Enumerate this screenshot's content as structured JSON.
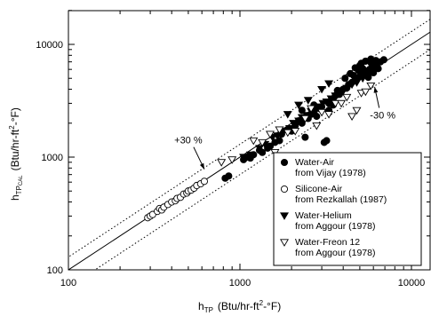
{
  "chart_data": {
    "type": "scatter",
    "title": "",
    "xlabel": {
      "main": "h",
      "sub": "TP",
      "unit": "(Btu/hr-ft",
      "sup": "2",
      "unit_end": "-°F)"
    },
    "ylabel": {
      "main": "h",
      "sub": "TP",
      "subsub": "CAL",
      "unit": "(Btu/hr-ft",
      "sup": "2",
      "unit_end": "-°F)"
    },
    "x_scale": "log",
    "y_scale": "log",
    "xlim": [
      100,
      15000
    ],
    "ylim": [
      100,
      20000
    ],
    "x_ticks": [
      {
        "value": 100,
        "label": "100"
      },
      {
        "value": 1000,
        "label": "1000"
      },
      {
        "value": 10000,
        "label": "10000"
      }
    ],
    "y_ticks": [
      {
        "value": 100,
        "label": "100"
      },
      {
        "value": 1000,
        "label": "1000"
      },
      {
        "value": 10000,
        "label": "10000"
      }
    ],
    "grid": false,
    "legend_position": "bottom-right",
    "reference_lines": [
      {
        "name": "1:1",
        "factor": 1.0,
        "style": "solid"
      },
      {
        "name": "+30%",
        "factor": 1.3,
        "style": "dotted"
      },
      {
        "name": "-30%",
        "factor": 0.7,
        "style": "dotted"
      }
    ],
    "annotations": [
      {
        "text": "+30 %",
        "text_x": 500,
        "text_y": 1320,
        "arrow_x": 620,
        "arrow_y": 780
      },
      {
        "text": "-30 %",
        "text_x": 6800,
        "text_y": 2200,
        "arrow_x": 6100,
        "arrow_y": 4200
      }
    ],
    "series": [
      {
        "legend_line1": "Water-Air",
        "legend_line2": "from Vijay (1978)",
        "marker": "circle-filled",
        "points": [
          [
            820,
            650
          ],
          [
            860,
            680
          ],
          [
            1050,
            950
          ],
          [
            1100,
            1000
          ],
          [
            1150,
            980
          ],
          [
            1200,
            1050
          ],
          [
            1300,
            1150
          ],
          [
            1350,
            1100
          ],
          [
            1450,
            1200
          ],
          [
            1500,
            1250
          ],
          [
            1600,
            1350
          ],
          [
            1700,
            1400
          ],
          [
            1750,
            1600
          ],
          [
            1900,
            1750
          ],
          [
            2000,
            1700
          ],
          [
            2100,
            1900
          ],
          [
            2200,
            2100
          ],
          [
            2300,
            2000
          ],
          [
            2400,
            1500
          ],
          [
            2500,
            2200
          ],
          [
            2600,
            2400
          ],
          [
            2700,
            2500
          ],
          [
            2800,
            2300
          ],
          [
            2900,
            2700
          ],
          [
            3000,
            2800
          ],
          [
            3100,
            1350
          ],
          [
            3200,
            1400
          ],
          [
            3300,
            3000
          ],
          [
            3400,
            3200
          ],
          [
            3500,
            3300
          ],
          [
            3600,
            3500
          ],
          [
            3800,
            3600
          ],
          [
            3900,
            3800
          ],
          [
            4000,
            4000
          ],
          [
            4200,
            4100
          ],
          [
            4300,
            4400
          ],
          [
            4500,
            4600
          ],
          [
            4700,
            4800
          ],
          [
            4800,
            5000
          ],
          [
            5000,
            5200
          ],
          [
            5200,
            5300
          ],
          [
            5300,
            5600
          ],
          [
            5500,
            5800
          ],
          [
            5700,
            6000
          ],
          [
            5900,
            6300
          ],
          [
            6100,
            6500
          ],
          [
            6300,
            6800
          ],
          [
            6600,
            7000
          ],
          [
            4700,
            6200
          ],
          [
            5000,
            6500
          ],
          [
            5400,
            7100
          ],
          [
            5800,
            7400
          ],
          [
            6200,
            7200
          ],
          [
            6900,
            7300
          ],
          [
            3700,
            3900
          ],
          [
            4100,
            5000
          ],
          [
            4400,
            5500
          ],
          [
            4900,
            5900
          ],
          [
            5100,
            6800
          ],
          [
            5600,
            5100
          ],
          [
            6000,
            5600
          ],
          [
            6400,
            6100
          ],
          [
            5800,
            6900
          ],
          [
            5200,
            6100
          ],
          [
            4600,
            5300
          ],
          [
            3300,
            2600
          ],
          [
            3500,
            2900
          ],
          [
            2700,
            2900
          ],
          [
            2300,
            2600
          ]
        ]
      },
      {
        "legend_line1": "Silicone-Air",
        "legend_line2": "from Rezkallah (1987)",
        "marker": "circle-open",
        "points": [
          [
            290,
            290
          ],
          [
            300,
            300
          ],
          [
            310,
            310
          ],
          [
            330,
            330
          ],
          [
            340,
            350
          ],
          [
            350,
            340
          ],
          [
            360,
            360
          ],
          [
            380,
            380
          ],
          [
            400,
            400
          ],
          [
            420,
            410
          ],
          [
            430,
            430
          ],
          [
            450,
            440
          ],
          [
            470,
            470
          ],
          [
            490,
            480
          ],
          [
            500,
            500
          ],
          [
            520,
            510
          ],
          [
            540,
            530
          ],
          [
            560,
            560
          ],
          [
            590,
            580
          ],
          [
            620,
            610
          ]
        ]
      },
      {
        "legend_line1": "Water-Helium",
        "legend_line2": "from Aggour (1978)",
        "marker": "triangle-down-filled",
        "points": [
          [
            1050,
            1000
          ],
          [
            1150,
            1050
          ],
          [
            1300,
            1200
          ],
          [
            1400,
            1300
          ],
          [
            1550,
            1500
          ],
          [
            1650,
            1550
          ],
          [
            1800,
            1700
          ],
          [
            1950,
            1800
          ],
          [
            2050,
            2000
          ],
          [
            2200,
            2100
          ],
          [
            2300,
            2250
          ],
          [
            2450,
            2350
          ],
          [
            2600,
            2550
          ],
          [
            2750,
            2600
          ],
          [
            2900,
            2800
          ],
          [
            3050,
            3000
          ],
          [
            3200,
            3100
          ],
          [
            3400,
            3300
          ],
          [
            3600,
            3500
          ],
          [
            3800,
            3700
          ],
          [
            4000,
            3900
          ],
          [
            4200,
            4100
          ],
          [
            4500,
            4400
          ],
          [
            4800,
            4600
          ],
          [
            5200,
            5000
          ],
          [
            5600,
            5400
          ],
          [
            6000,
            5800
          ],
          [
            2500,
            3200
          ],
          [
            3000,
            4000
          ],
          [
            3300,
            4500
          ],
          [
            1900,
            2400
          ],
          [
            2200,
            2900
          ]
        ]
      },
      {
        "legend_line1": "Water-Freon 12",
        "legend_line2": "from Aggour (1978)",
        "marker": "triangle-down-open",
        "points": [
          [
            780,
            900
          ],
          [
            900,
            950
          ],
          [
            1200,
            1400
          ],
          [
            1350,
            1350
          ],
          [
            1500,
            1600
          ],
          [
            1600,
            1100
          ],
          [
            1700,
            1750
          ],
          [
            1900,
            1650
          ],
          [
            2100,
            1700
          ],
          [
            2400,
            2200
          ],
          [
            2600,
            2700
          ],
          [
            2800,
            1900
          ],
          [
            3000,
            2500
          ],
          [
            3300,
            2400
          ],
          [
            3600,
            3000
          ],
          [
            3900,
            3000
          ],
          [
            4200,
            3400
          ],
          [
            4500,
            2300
          ],
          [
            4800,
            2600
          ],
          [
            5100,
            3700
          ],
          [
            5400,
            3800
          ],
          [
            5800,
            4300
          ]
        ]
      }
    ]
  }
}
